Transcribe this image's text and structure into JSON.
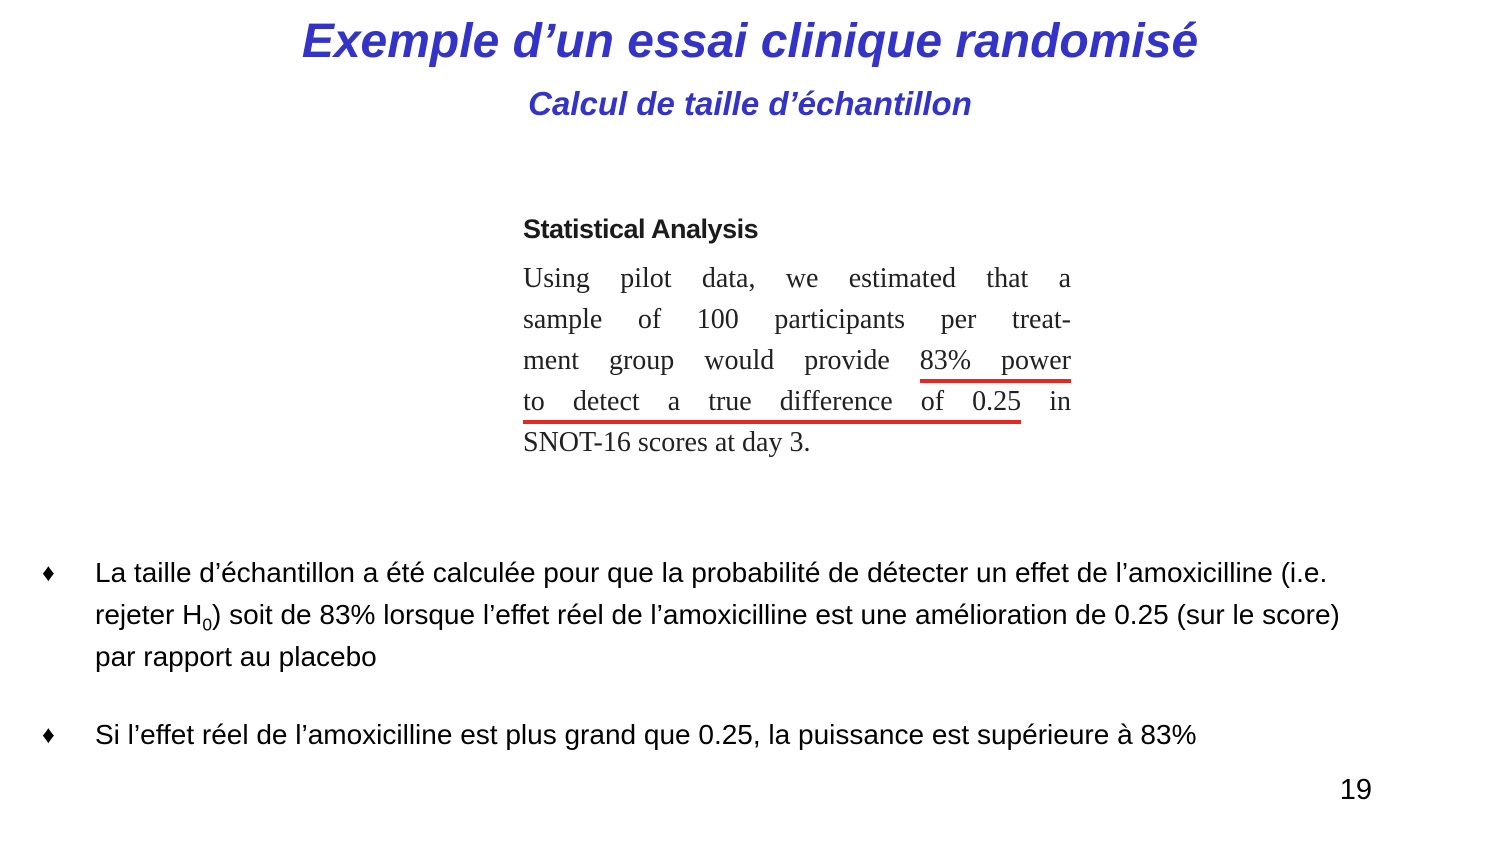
{
  "slide": {
    "title": "Exemple d’un essai clinique randomisé",
    "subtitle": "Calcul de taille d’échantillon",
    "page_number": "19",
    "colors": {
      "title_blue": "#3333c8",
      "underline_red": "#e8271f"
    }
  },
  "excerpt": {
    "heading": "Statistical Analysis",
    "lines": [
      {
        "text": "Using pilot data, we estimated that a"
      },
      {
        "text": "sample of 100 participants per treat-"
      },
      {
        "pre": "ment group would provide ",
        "underline": "83% power"
      },
      {
        "underline": "to detect a true difference of 0.25",
        "post": " in"
      },
      {
        "text": "SNOT-16 scores at day 3."
      }
    ]
  },
  "bullets": {
    "marker": "♦",
    "item1": {
      "text_before_sub": "La taille d’échantillon a été calculée pour que la probabilité de détecter un effet de l’amoxicilline (i.e. rejeter H",
      "sub": "0",
      "text_after_sub": ") soit de 83% lorsque l’effet réel de l’amoxicilline est une amélioration de 0.25 (sur le score) par rapport au placebo"
    },
    "item2": {
      "text": "Si l’effet réel de l’amoxicilline est plus grand que 0.25, la puissance est supérieure à 83%"
    }
  }
}
